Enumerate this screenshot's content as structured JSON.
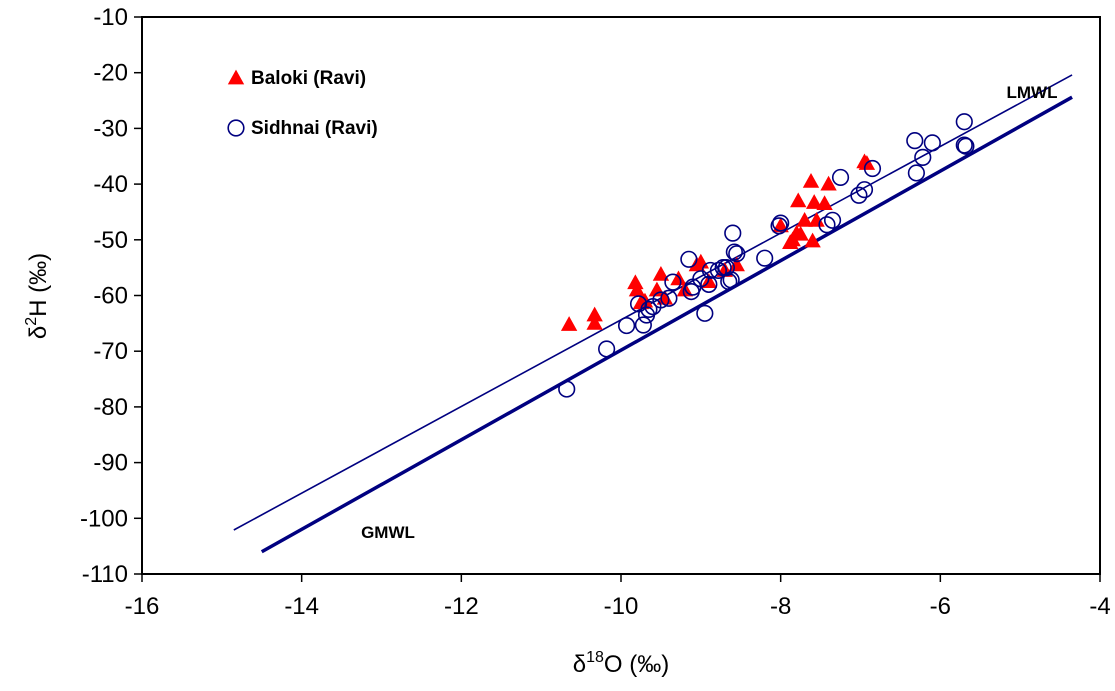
{
  "chart_data": {
    "type": "scatter",
    "xlim": [
      -16,
      -4
    ],
    "ylim": [
      -110,
      -10
    ],
    "x_ticks": [
      "-16",
      "-14",
      "-12",
      "-10",
      "-8",
      "-6",
      "-4"
    ],
    "y_ticks": [
      "-10",
      "-20",
      "-30",
      "-40",
      "-50",
      "-60",
      "-70",
      "-80",
      "-90",
      "-100",
      "-110"
    ],
    "x_tick_values": [
      -16,
      -14,
      -12,
      -10,
      -8,
      -6,
      -4
    ],
    "y_tick_values": [
      -10,
      -20,
      -30,
      -40,
      -50,
      -60,
      -70,
      -80,
      -90,
      -100,
      -110
    ],
    "xlabel": {
      "prefix": "δ",
      "sup": "18",
      "main": "O (‰)"
    },
    "ylabel": {
      "prefix": "δ",
      "sup": "2",
      "main": "H (‰)"
    },
    "grid": false,
    "legend_position": "top-left",
    "series": [
      {
        "name": "Baloki (Ravi)",
        "marker": "filled-triangle",
        "color": "#ff0000",
        "points": [
          [
            -10.65,
            -65.2
          ],
          [
            -10.33,
            -63.5
          ],
          [
            -10.33,
            -65.0
          ],
          [
            -9.82,
            -57.7
          ],
          [
            -9.8,
            -59.0
          ],
          [
            -9.75,
            -61.3
          ],
          [
            -9.7,
            -61.0
          ],
          [
            -9.55,
            -59.0
          ],
          [
            -9.5,
            -56.2
          ],
          [
            -9.45,
            -60.5
          ],
          [
            -9.28,
            -57.0
          ],
          [
            -9.2,
            -59.0
          ],
          [
            -9.05,
            -54.5
          ],
          [
            -9.0,
            -54.0
          ],
          [
            -8.9,
            -57.5
          ],
          [
            -8.7,
            -55.5
          ],
          [
            -8.55,
            -54.5
          ],
          [
            -8.0,
            -47.5
          ],
          [
            -7.88,
            -50.5
          ],
          [
            -7.85,
            -50.0
          ],
          [
            -7.8,
            -48.8
          ],
          [
            -7.78,
            -43.0
          ],
          [
            -7.75,
            -49.0
          ],
          [
            -7.7,
            -46.5
          ],
          [
            -7.62,
            -39.5
          ],
          [
            -7.6,
            -50.2
          ],
          [
            -7.58,
            -43.3
          ],
          [
            -7.55,
            -46.5
          ],
          [
            -7.45,
            -43.5
          ],
          [
            -7.4,
            -40.0
          ],
          [
            -6.95,
            -36.0
          ],
          [
            -6.92,
            -36.3
          ]
        ]
      },
      {
        "name": "Sidhnai (Ravi)",
        "marker": "open-circle",
        "color": "#000080",
        "points": [
          [
            -10.68,
            -76.8
          ],
          [
            -10.18,
            -69.6
          ],
          [
            -9.93,
            -65.4
          ],
          [
            -9.78,
            -61.5
          ],
          [
            -9.72,
            -65.3
          ],
          [
            -9.68,
            -63.5
          ],
          [
            -9.65,
            -62.5
          ],
          [
            -9.6,
            -62.0
          ],
          [
            -9.5,
            -60.8
          ],
          [
            -9.4,
            -60.5
          ],
          [
            -9.35,
            -57.6
          ],
          [
            -9.15,
            -53.5
          ],
          [
            -9.12,
            -59.3
          ],
          [
            -9.1,
            -58.5
          ],
          [
            -9.0,
            -57.0
          ],
          [
            -8.95,
            -63.2
          ],
          [
            -8.9,
            -58.0
          ],
          [
            -8.88,
            -55.5
          ],
          [
            -8.78,
            -55.5
          ],
          [
            -8.72,
            -55.0
          ],
          [
            -8.68,
            -55.0
          ],
          [
            -8.65,
            -57.5
          ],
          [
            -8.62,
            -57.2
          ],
          [
            -8.6,
            -48.8
          ],
          [
            -8.58,
            -52.2
          ],
          [
            -8.55,
            -52.5
          ],
          [
            -8.2,
            -53.3
          ],
          [
            -8.02,
            -47.5
          ],
          [
            -8.0,
            -47.0
          ],
          [
            -7.42,
            -47.3
          ],
          [
            -7.35,
            -46.5
          ],
          [
            -7.25,
            -38.8
          ],
          [
            -7.02,
            -42.0
          ],
          [
            -6.95,
            -41.0
          ],
          [
            -6.85,
            -37.2
          ],
          [
            -6.32,
            -32.2
          ],
          [
            -6.3,
            -38.0
          ],
          [
            -6.22,
            -35.2
          ],
          [
            -6.1,
            -32.6
          ],
          [
            -5.7,
            -33.0
          ],
          [
            -5.7,
            -28.8
          ],
          [
            -5.68,
            -33.2
          ]
        ]
      }
    ],
    "lines": [
      {
        "name": "LMWL",
        "color": "#000080",
        "stroke": "thin",
        "endpoints": [
          [
            -14.85,
            -102.1
          ],
          [
            -4.35,
            -20.4
          ]
        ]
      },
      {
        "name": "GMWL",
        "color": "#000080",
        "stroke": "thick",
        "endpoints": [
          [
            -14.5,
            -106.0
          ],
          [
            -4.35,
            -24.4
          ]
        ]
      }
    ]
  }
}
